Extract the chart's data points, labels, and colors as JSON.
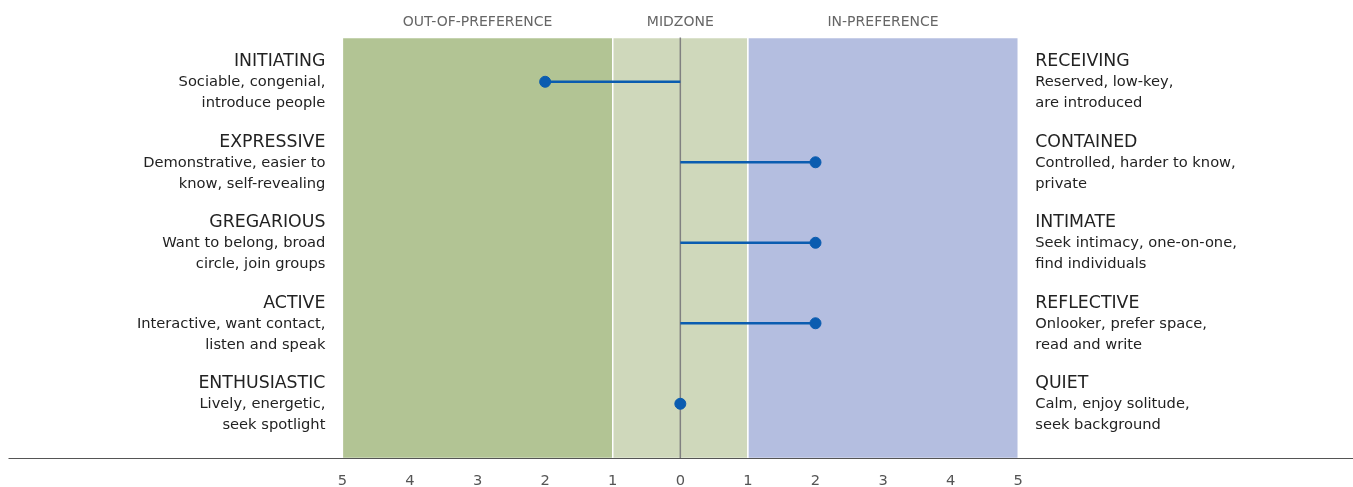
{
  "chart_data": {
    "type": "lollipop",
    "orientation": "horizontal",
    "categories": [
      "INITIATING",
      "EXPRESSIVE",
      "GREGARIOUS",
      "ACTIVE",
      "ENTHUSIASTIC"
    ],
    "y2_categories": [
      "RECEIVING",
      "CONTAINED",
      "INTIMATE",
      "REFLECTIVE",
      "QUIET"
    ],
    "annotations": [
      "Sociable, congenial,\nintroduce people",
      "Reserved, low-key,\nare introduced",
      "Demonstrative, easier to\nknow, self-revealing",
      "Controlled, harder to know,\nprivate",
      "Want to belong, broad\ncircle, join groups",
      "Seek intimacy, one-on-one,\nfind individuals",
      "Interactive, want contact,\nlisten and speak",
      "Onlooker, prefer space,\nread and write",
      "Lively, energetic,\nseek spotlight",
      "Calm, enjoy solitude,\nseek background"
    ],
    "series": [
      {
        "color": "#0a5cb0",
        "values": [
          -2,
          2,
          2,
          2,
          0
        ]
      }
    ],
    "xlim": [
      -9.94,
      9.96
    ],
    "xticks": [
      {
        "value": -5,
        "label": "5"
      },
      {
        "value": -4,
        "label": "4"
      },
      {
        "value": -3,
        "label": "3"
      },
      {
        "value": -2,
        "label": "2"
      },
      {
        "value": -1,
        "label": "1"
      },
      0,
      1,
      2,
      3,
      4,
      5
    ],
    "bands": [
      {
        "axis": "x",
        "from": -5,
        "to": -1,
        "label": "OUT-OF-PREFERENCE",
        "color": "#b2c494"
      },
      {
        "axis": "x",
        "from": -1,
        "to": 1,
        "label": "MIDZONE",
        "color": "#cfd8bb"
      },
      {
        "axis": "x",
        "from": 1,
        "to": 5,
        "label": "IN-PREFERENCE",
        "color": "#b4bee0"
      }
    ],
    "ref_lines": [
      {
        "axis": "x",
        "value": 0,
        "color": "#808080"
      }
    ],
    "marker": "circle",
    "grid": false
  }
}
